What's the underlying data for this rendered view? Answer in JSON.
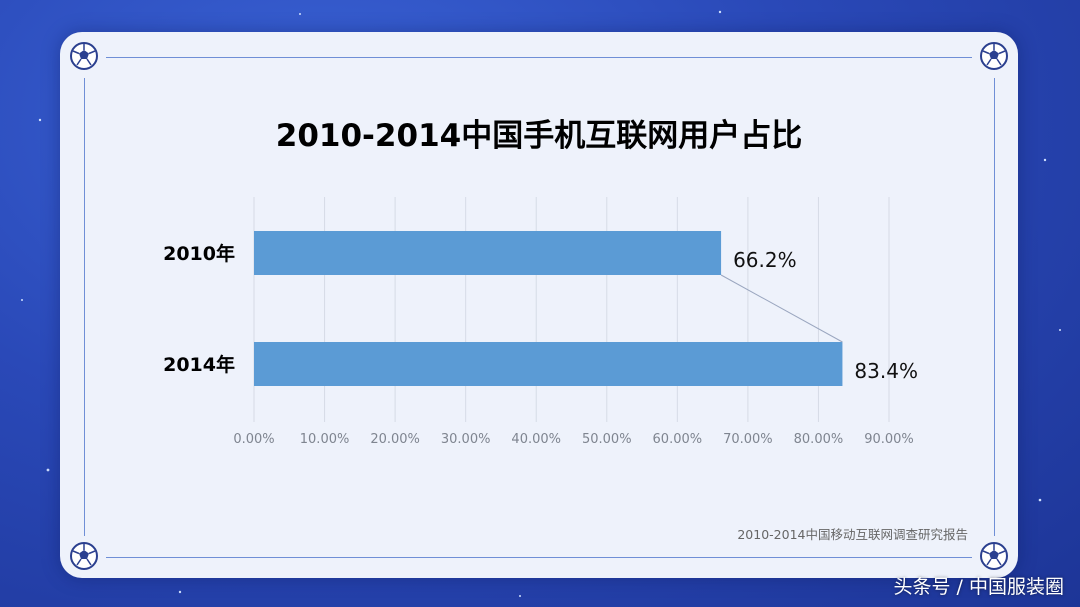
{
  "chart_data": {
    "type": "bar",
    "orientation": "horizontal",
    "title": "2010-2014中国手机互联网用户占比",
    "categories": [
      "2010年",
      "2014年"
    ],
    "values": [
      66.2,
      83.4
    ],
    "data_labels": [
      "66.2%",
      "83.4%"
    ],
    "xlim": [
      0,
      90
    ],
    "x_ticks": [
      "0.00%",
      "10.00%",
      "20.00%",
      "30.00%",
      "40.00%",
      "50.00%",
      "60.00%",
      "70.00%",
      "80.00%",
      "90.00%"
    ],
    "grid": true,
    "bar_color": "#5b9bd5"
  },
  "source_note": "2010-2014中国移动互联网调查研究报告",
  "watermark": "头条号 / 中国服装圈"
}
